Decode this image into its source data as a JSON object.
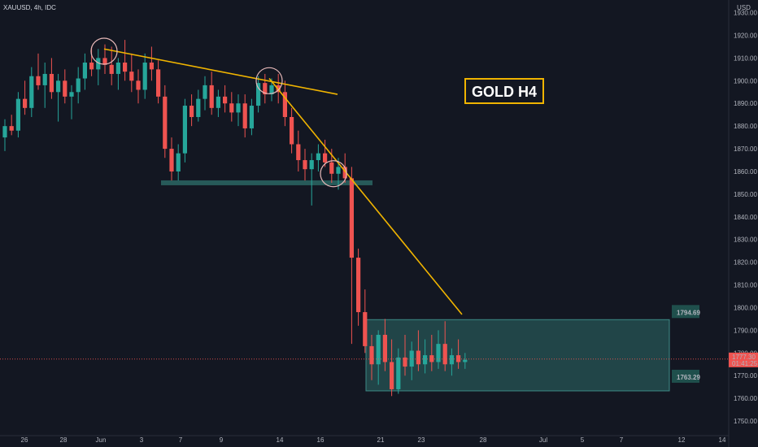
{
  "header": {
    "symbol": "XAUUSD, 4h, IDC",
    "currency": "USD"
  },
  "chart_data": {
    "type": "candlestick",
    "title": "",
    "ylim": [
      1745,
      1932
    ],
    "y_ticks": [
      1750,
      1760,
      1770,
      1780,
      1790,
      1800,
      1810,
      1820,
      1830,
      1840,
      1850,
      1860,
      1870,
      1880,
      1890,
      1900,
      1910,
      1920,
      1930
    ],
    "x_ticks": [
      "26",
      "28",
      "Jun",
      "3",
      "7",
      "9",
      "14",
      "16",
      "21",
      "23",
      "28",
      "Jul",
      "5",
      "7",
      "12",
      "14"
    ],
    "candles": [
      [
        1875,
        1883,
        1869,
        1880
      ],
      [
        1880,
        1885,
        1876,
        1878
      ],
      [
        1878,
        1895,
        1875,
        1892
      ],
      [
        1892,
        1900,
        1885,
        1888
      ],
      [
        1888,
        1906,
        1884,
        1902
      ],
      [
        1902,
        1912,
        1896,
        1898
      ],
      [
        1898,
        1908,
        1888,
        1903
      ],
      [
        1903,
        1910,
        1892,
        1895
      ],
      [
        1895,
        1903,
        1882,
        1900
      ],
      [
        1900,
        1905,
        1890,
        1893
      ],
      [
        1893,
        1898,
        1883,
        1895
      ],
      [
        1895,
        1906,
        1890,
        1901
      ],
      [
        1901,
        1912,
        1896,
        1908
      ],
      [
        1908,
        1915,
        1902,
        1905
      ],
      [
        1905,
        1914,
        1898,
        1910
      ],
      [
        1910,
        1916,
        1903,
        1907
      ],
      [
        1907,
        1915,
        1898,
        1903
      ],
      [
        1903,
        1910,
        1896,
        1908
      ],
      [
        1908,
        1918,
        1900,
        1904
      ],
      [
        1904,
        1912,
        1895,
        1900
      ],
      [
        1900,
        1905,
        1890,
        1896
      ],
      [
        1896,
        1912,
        1892,
        1908
      ],
      [
        1908,
        1915,
        1900,
        1905
      ],
      [
        1905,
        1909,
        1890,
        1893
      ],
      [
        1893,
        1898,
        1866,
        1870
      ],
      [
        1870,
        1875,
        1856,
        1860
      ],
      [
        1860,
        1872,
        1856,
        1868
      ],
      [
        1868,
        1892,
        1864,
        1889
      ],
      [
        1889,
        1894,
        1880,
        1884
      ],
      [
        1884,
        1896,
        1882,
        1892
      ],
      [
        1892,
        1902,
        1887,
        1898
      ],
      [
        1898,
        1904,
        1885,
        1888
      ],
      [
        1888,
        1896,
        1884,
        1893
      ],
      [
        1893,
        1898,
        1886,
        1890
      ],
      [
        1890,
        1895,
        1882,
        1886
      ],
      [
        1886,
        1894,
        1880,
        1890
      ],
      [
        1890,
        1894,
        1875,
        1879
      ],
      [
        1879,
        1892,
        1876,
        1889
      ],
      [
        1889,
        1902,
        1886,
        1899
      ],
      [
        1899,
        1903,
        1890,
        1894
      ],
      [
        1894,
        1901,
        1891,
        1898
      ],
      [
        1898,
        1903,
        1890,
        1895
      ],
      [
        1895,
        1900,
        1880,
        1884
      ],
      [
        1884,
        1888,
        1868,
        1872
      ],
      [
        1872,
        1878,
        1860,
        1865
      ],
      [
        1865,
        1870,
        1856,
        1861
      ],
      [
        1861,
        1868,
        1845,
        1865
      ],
      [
        1865,
        1872,
        1860,
        1868
      ],
      [
        1868,
        1874,
        1862,
        1864
      ],
      [
        1864,
        1870,
        1855,
        1859
      ],
      [
        1859,
        1866,
        1852,
        1862
      ],
      [
        1862,
        1868,
        1855,
        1857
      ],
      [
        1857,
        1862,
        1784,
        1822
      ],
      [
        1822,
        1826,
        1792,
        1798
      ],
      [
        1798,
        1808,
        1780,
        1783
      ],
      [
        1783,
        1788,
        1768,
        1775
      ],
      [
        1775,
        1790,
        1766,
        1788
      ],
      [
        1788,
        1795,
        1772,
        1776
      ],
      [
        1776,
        1786,
        1761,
        1764
      ],
      [
        1764,
        1782,
        1762,
        1778
      ],
      [
        1778,
        1788,
        1770,
        1774
      ],
      [
        1774,
        1785,
        1768,
        1781
      ],
      [
        1781,
        1790,
        1772,
        1775
      ],
      [
        1775,
        1786,
        1771,
        1779
      ],
      [
        1779,
        1788,
        1772,
        1776
      ],
      [
        1776,
        1790,
        1773,
        1784
      ],
      [
        1784,
        1794,
        1772,
        1775
      ],
      [
        1775,
        1782,
        1770,
        1779
      ],
      [
        1779,
        1786,
        1773,
        1776
      ],
      [
        1776,
        1780,
        1773,
        1777
      ]
    ],
    "current_price": {
      "value": "1777.30",
      "countdown": "01:41:25"
    },
    "zones": [
      {
        "type": "support-line",
        "y": 1855,
        "label": ""
      },
      {
        "type": "range-box",
        "top": 1794.69,
        "bottom": 1763.29,
        "top_label": "1794.69",
        "bottom_label": "1763.29"
      }
    ],
    "trendlines": [
      {
        "from": [
          "Jun 1",
          1914
        ],
        "to": [
          "Jun 16",
          1894
        ]
      },
      {
        "from": [
          "Jun 13",
          1901
        ],
        "to": [
          "Jun 23",
          1797
        ]
      }
    ],
    "annotations": {
      "label": "GOLD H4"
    },
    "colors": {
      "background": "#131722",
      "up": "#26a69a",
      "down": "#ef5350",
      "trend": "#f0b400",
      "zone": "#2d6b68",
      "price_line": "#ef5350"
    }
  }
}
